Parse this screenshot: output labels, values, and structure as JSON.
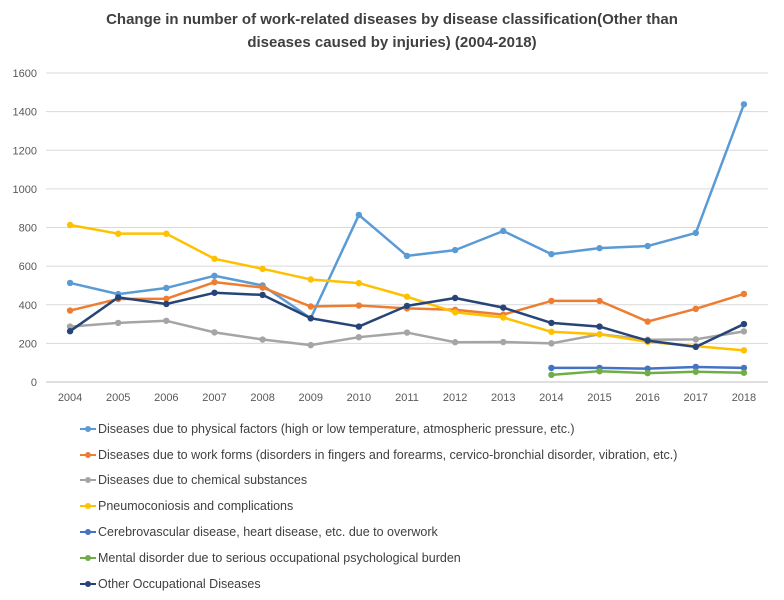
{
  "chart_data": {
    "type": "line",
    "title_lines": [
      "Change in number of work-related diseases by disease classification(Other than",
      "diseases caused by injuries) (2004-2018)"
    ],
    "xlabel": "",
    "ylabel": "",
    "x": [
      "2004",
      "2005",
      "2006",
      "2007",
      "2008",
      "2009",
      "2010",
      "2011",
      "2012",
      "2013",
      "2014",
      "2015",
      "2016",
      "2017",
      "2018"
    ],
    "ylim": [
      0,
      1600
    ],
    "yticks": [
      0,
      200,
      400,
      600,
      800,
      1000,
      1200,
      1400,
      1600
    ],
    "grid": true,
    "legend_position": "bottom",
    "series": [
      {
        "name": "Diseases due to physical factors (high or low temperature, atmospheric pressure, etc.)",
        "color": "#5B9BD5",
        "values": [
          513,
          455,
          487,
          550,
          500,
          330,
          865,
          653,
          683,
          782,
          662,
          693,
          704,
          772,
          1438
        ]
      },
      {
        "name": "Diseases due to work forms (disorders in fingers and forearms, cervico-bronchial disorder, vibration, etc.)",
        "color": "#ED7D31",
        "values": [
          370,
          430,
          431,
          517,
          489,
          391,
          396,
          381,
          374,
          349,
          420,
          420,
          313,
          379,
          456
        ]
      },
      {
        "name": "Diseases due to chemical substances",
        "color": "#A5A5A5",
        "values": [
          287,
          306,
          317,
          257,
          220,
          191,
          232,
          256,
          206,
          207,
          200,
          247,
          219,
          221,
          262
        ]
      },
      {
        "name": "Pneumoconiosis and complications",
        "color": "#FFC000",
        "values": [
          813,
          768,
          768,
          638,
          586,
          531,
          512,
          442,
          361,
          334,
          260,
          247,
          208,
          186,
          164
        ]
      },
      {
        "name": "Cerebrovascular disease, heart disease, etc. due to overwork",
        "color": "#4472C4",
        "values": [
          null,
          null,
          null,
          null,
          null,
          null,
          null,
          null,
          null,
          null,
          73,
          73,
          69,
          78,
          73
        ]
      },
      {
        "name": "Mental disorder due to serious occupational psychological burden",
        "color": "#70AD47",
        "values": [
          null,
          null,
          null,
          null,
          null,
          null,
          null,
          null,
          null,
          null,
          37,
          56,
          46,
          53,
          48
        ]
      },
      {
        "name": "Other Occupational Diseases",
        "color": "#264478",
        "values": [
          263,
          438,
          404,
          462,
          451,
          330,
          287,
          394,
          435,
          385,
          306,
          287,
          214,
          182,
          300
        ]
      }
    ]
  }
}
